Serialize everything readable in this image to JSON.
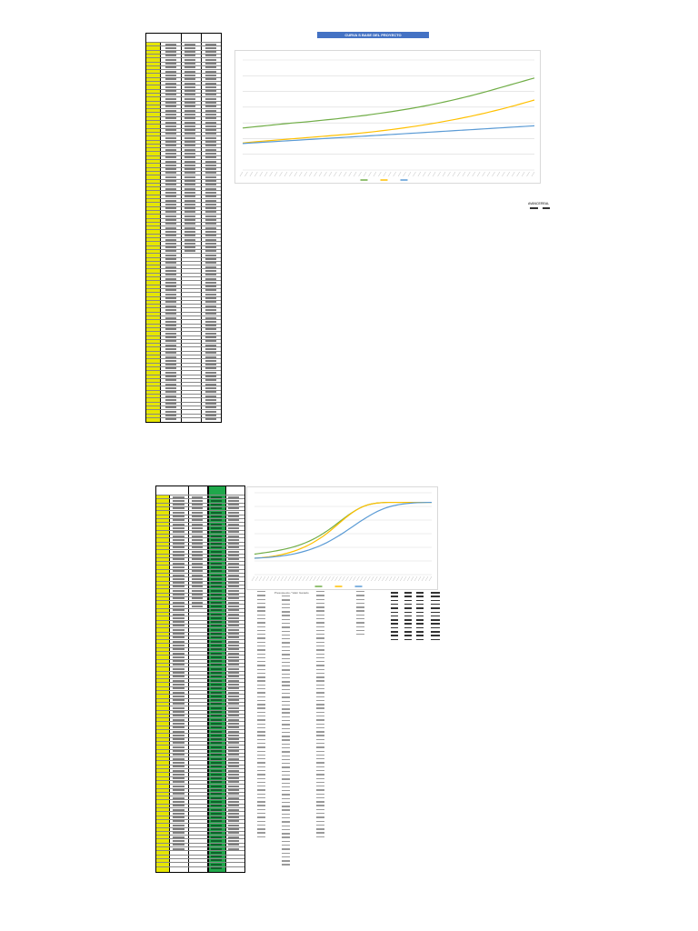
{
  "sheet_top": {
    "chart_title": "CURVA S BASE DEL PROYECTO",
    "side_note_labels": [
      "AVANCE",
      "REAL"
    ],
    "series_colors": [
      "#70ad47",
      "#ffc000",
      "#5b9bd5"
    ]
  },
  "sheet_bottom": {
    "series_colors": [
      "#70ad47",
      "#ffc000",
      "#5b9bd5"
    ],
    "column_header_labels": [
      "",
      "",
      "",
      "",
      "",
      ""
    ],
    "note_text": "Presupuesto / Valor Ganado"
  },
  "chart_data": [
    {
      "type": "line",
      "title": "CURVA S BASE DEL PROYECTO",
      "x": [
        1,
        2,
        3,
        4,
        5,
        6,
        7,
        8,
        9,
        10,
        11,
        12,
        13,
        14,
        15,
        16,
        17,
        18,
        19,
        20,
        21,
        22,
        23,
        24,
        25,
        26,
        27,
        28,
        29,
        30,
        31,
        32,
        33,
        34,
        35,
        36,
        37,
        38,
        39,
        40,
        41,
        42,
        43,
        44,
        45,
        46,
        47,
        48,
        49,
        50,
        51,
        52,
        53,
        54,
        55,
        56,
        57,
        58,
        59,
        60
      ],
      "series": [
        {
          "values": [
            0.42,
            0.425,
            0.43,
            0.435,
            0.44,
            0.445,
            0.45,
            0.455,
            0.46,
            0.465,
            0.47,
            0.474,
            0.478,
            0.482,
            0.487,
            0.492,
            0.497,
            0.502,
            0.507,
            0.512,
            0.518,
            0.524,
            0.53,
            0.536,
            0.542,
            0.548,
            0.555,
            0.562,
            0.569,
            0.576,
            0.583,
            0.591,
            0.599,
            0.607,
            0.615,
            0.624,
            0.633,
            0.642,
            0.652,
            0.662,
            0.672,
            0.683,
            0.694,
            0.705,
            0.717,
            0.729,
            0.741,
            0.754,
            0.767,
            0.78,
            0.794,
            0.808,
            0.822,
            0.836,
            0.85,
            0.864,
            0.878,
            0.892,
            0.906,
            0.92
          ]
        },
        {
          "values": [
            0.27,
            0.275,
            0.28,
            0.284,
            0.288,
            0.292,
            0.296,
            0.3,
            0.304,
            0.308,
            0.312,
            0.316,
            0.32,
            0.324,
            0.328,
            0.332,
            0.336,
            0.34,
            0.344,
            0.348,
            0.352,
            0.356,
            0.36,
            0.365,
            0.37,
            0.375,
            0.38,
            0.386,
            0.392,
            0.398,
            0.404,
            0.41,
            0.417,
            0.424,
            0.431,
            0.438,
            0.446,
            0.454,
            0.462,
            0.47,
            0.479,
            0.488,
            0.497,
            0.506,
            0.516,
            0.526,
            0.536,
            0.547,
            0.558,
            0.569,
            0.581,
            0.593,
            0.605,
            0.618,
            0.631,
            0.644,
            0.658,
            0.672,
            0.686,
            0.7
          ]
        },
        {
          "values": [
            0.265,
            0.268,
            0.271,
            0.274,
            0.277,
            0.28,
            0.283,
            0.286,
            0.289,
            0.292,
            0.295,
            0.298,
            0.301,
            0.304,
            0.307,
            0.31,
            0.313,
            0.316,
            0.319,
            0.322,
            0.325,
            0.328,
            0.331,
            0.334,
            0.337,
            0.34,
            0.343,
            0.346,
            0.349,
            0.352,
            0.355,
            0.358,
            0.361,
            0.364,
            0.367,
            0.37,
            0.373,
            0.376,
            0.379,
            0.382,
            0.385,
            0.388,
            0.391,
            0.394,
            0.397,
            0.4,
            0.403,
            0.406,
            0.409,
            0.412,
            0.415,
            0.418,
            0.421,
            0.424,
            0.427,
            0.43,
            0.433,
            0.436,
            0.439,
            0.442
          ]
        }
      ],
      "ylim": [
        0,
        1.1
      ]
    },
    {
      "type": "line",
      "x": [
        1,
        2,
        3,
        4,
        5,
        6,
        7,
        8,
        9,
        10,
        11,
        12,
        13,
        14,
        15,
        16,
        17,
        18,
        19,
        20,
        21,
        22,
        23,
        24,
        25,
        26,
        27,
        28,
        29,
        30,
        31,
        32,
        33,
        34,
        35,
        36,
        37,
        38,
        39,
        40,
        41,
        42,
        43,
        44,
        45,
        46,
        47,
        48,
        49,
        50
      ],
      "series": [
        {
          "values": [
            0.2,
            0.205,
            0.21,
            0.215,
            0.22,
            0.226,
            0.232,
            0.239,
            0.246,
            0.254,
            0.263,
            0.273,
            0.284,
            0.296,
            0.31,
            0.325,
            0.342,
            0.36,
            0.38,
            0.402,
            0.425,
            0.45,
            0.476,
            0.503,
            0.53,
            0.557,
            0.583,
            0.607,
            0.629,
            0.649,
            0.665,
            0.678,
            0.688,
            0.695,
            0.7,
            0.703,
            0.705,
            0.706,
            0.706,
            0.706,
            0.706,
            0.706,
            0.706,
            0.706,
            0.706,
            0.706,
            0.706,
            0.706,
            0.706,
            0.706
          ]
        },
        {
          "values": [
            0.16,
            0.163,
            0.166,
            0.17,
            0.174,
            0.179,
            0.185,
            0.192,
            0.2,
            0.209,
            0.219,
            0.23,
            0.243,
            0.257,
            0.273,
            0.29,
            0.309,
            0.33,
            0.352,
            0.376,
            0.402,
            0.43,
            0.46,
            0.49,
            0.52,
            0.55,
            0.578,
            0.604,
            0.628,
            0.648,
            0.665,
            0.678,
            0.688,
            0.695,
            0.7,
            0.703,
            0.705,
            0.706,
            0.706,
            0.706,
            0.706,
            0.706,
            0.706,
            0.706,
            0.706,
            0.706,
            0.706,
            0.706,
            0.706,
            0.706
          ]
        },
        {
          "values": [
            0.16,
            0.162,
            0.164,
            0.166,
            0.169,
            0.172,
            0.176,
            0.18,
            0.185,
            0.19,
            0.196,
            0.203,
            0.211,
            0.22,
            0.23,
            0.241,
            0.253,
            0.266,
            0.28,
            0.296,
            0.313,
            0.332,
            0.352,
            0.373,
            0.395,
            0.418,
            0.442,
            0.466,
            0.49,
            0.514,
            0.537,
            0.559,
            0.58,
            0.6,
            0.618,
            0.634,
            0.648,
            0.66,
            0.67,
            0.678,
            0.685,
            0.69,
            0.694,
            0.698,
            0.701,
            0.703,
            0.704,
            0.705,
            0.706,
            0.706
          ]
        }
      ],
      "ylim": [
        0,
        0.8
      ]
    }
  ]
}
